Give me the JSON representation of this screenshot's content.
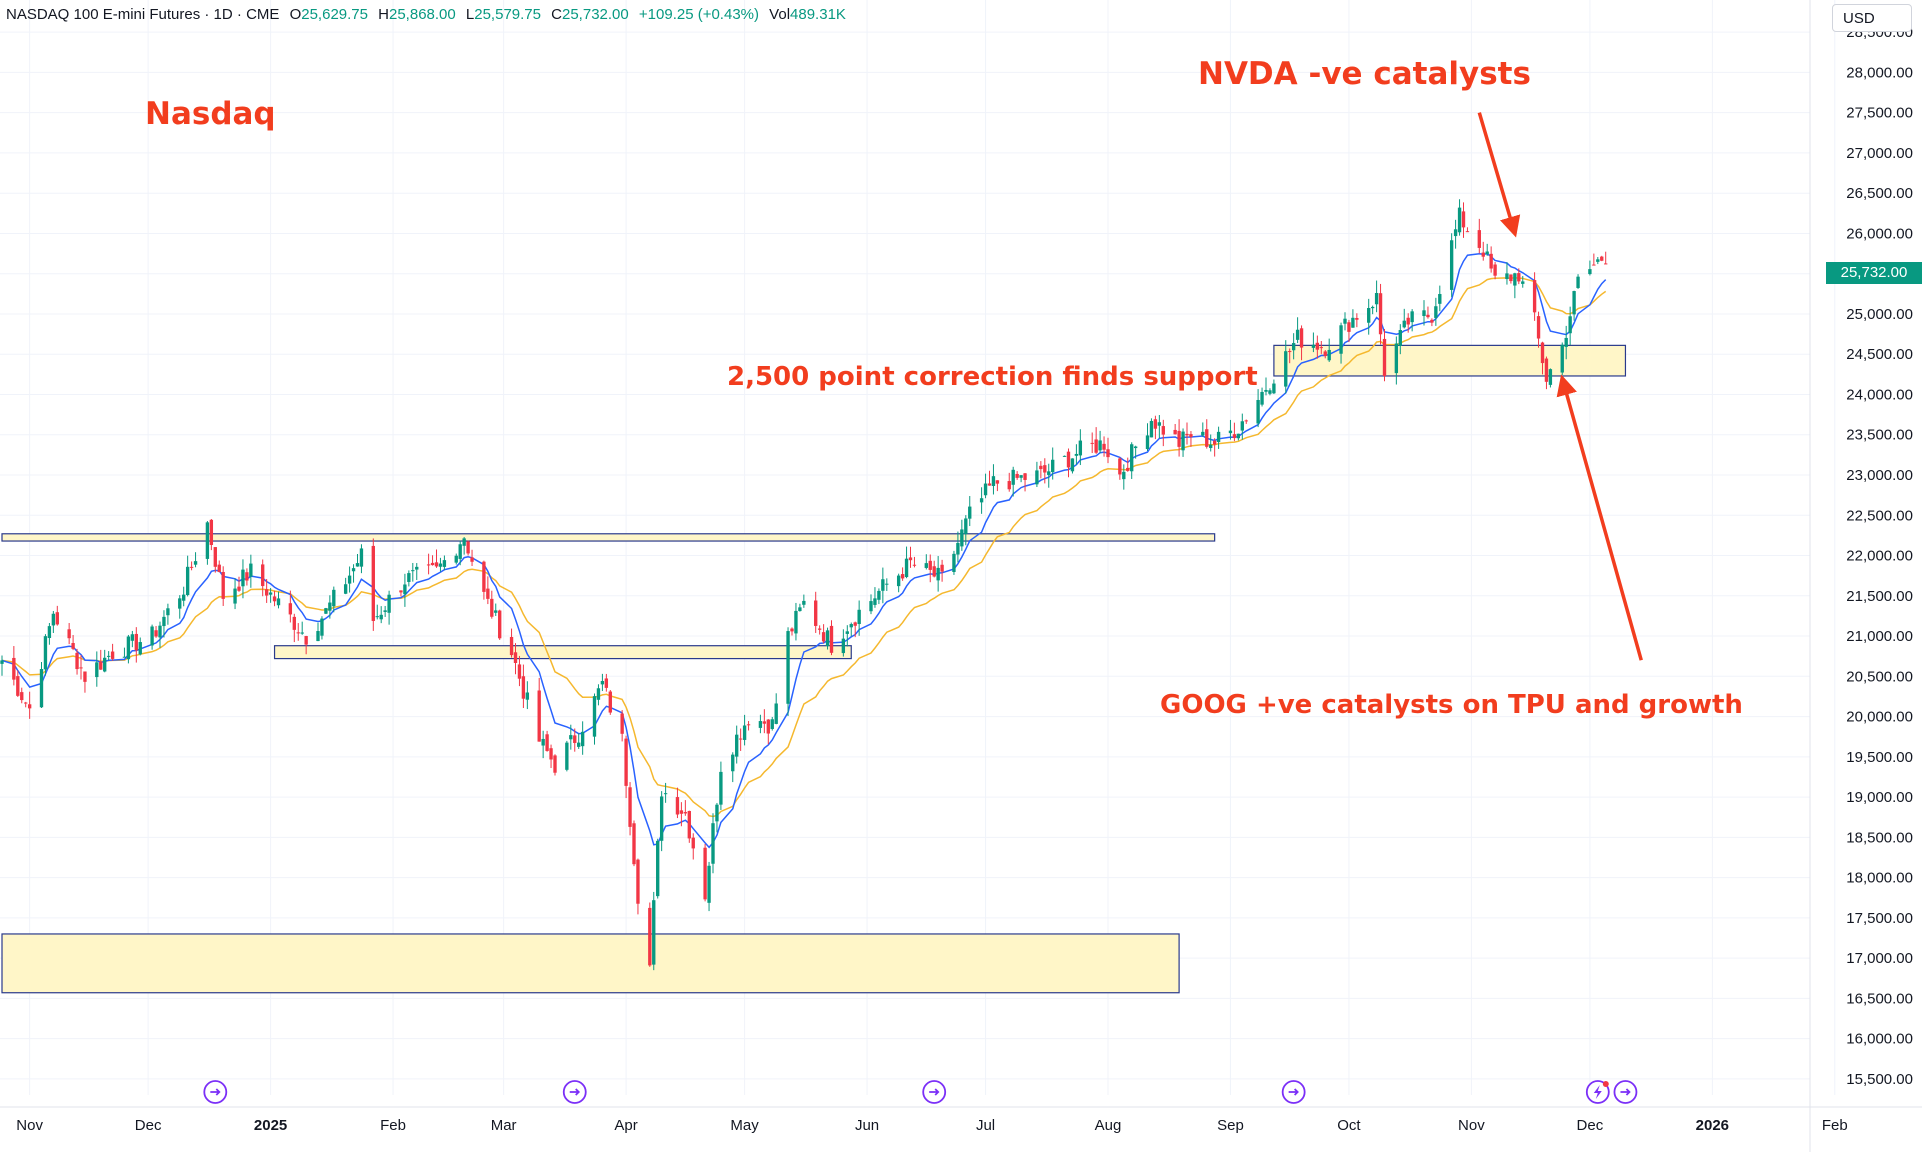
{
  "header": {
    "symbol": "NASDAQ 100 E-mini Futures · 1D · CME",
    "open_label": "O",
    "open": "25,629.75",
    "high_label": "H",
    "high": "25,868.00",
    "low_label": "L",
    "low": "25,579.75",
    "close_label": "C",
    "close": "25,732.00",
    "change": "+109.25 (+0.43%)",
    "vol_label": "Vol",
    "volume": "489.31K"
  },
  "currency": "USD",
  "last_price_tag": "25,732.00",
  "colors": {
    "up": "#089981",
    "down": "#f23645",
    "ma_fast": "#2962ff",
    "ma_slow": "#f5b82e",
    "zone_fill": "#fff6c8",
    "zone_border": "#2a3a8c",
    "annotation": "#f23d1e",
    "event_icon": "#7b2ff7"
  },
  "annotations": {
    "title": "Nasdaq",
    "nvda": "NVDA -ve catalysts",
    "correction": "2,500 point correction finds support",
    "goog": "GOOG +ve catalysts on TPU and growth"
  },
  "event_icons": [
    "event-icon",
    "event-icon",
    "event-icon",
    "event-icon",
    "event-icon-flash",
    "event-icon"
  ],
  "chart_data": {
    "type": "candlestick",
    "title": "",
    "ylim": [
      15300,
      28800
    ],
    "y_ticks": [
      "15,500.00",
      "16,000.00",
      "16,500.00",
      "17,000.00",
      "17,500.00",
      "18,000.00",
      "18,500.00",
      "19,000.00",
      "19,500.00",
      "20,000.00",
      "20,500.00",
      "21,000.00",
      "21,500.00",
      "22,000.00",
      "22,500.00",
      "23,000.00",
      "23,500.00",
      "24,000.00",
      "24,500.00",
      "25,000.00",
      "25,500.00",
      "26,000.00",
      "26,500.00",
      "27,000.00",
      "27,500.00",
      "28,000.00",
      "28,500.00"
    ],
    "x_ticks": [
      {
        "label": "Nov",
        "date": "2024-11-01",
        "bold": false
      },
      {
        "label": "Dec",
        "date": "2024-12-01",
        "bold": false
      },
      {
        "label": "2025",
        "date": "2025-01-01",
        "bold": true
      },
      {
        "label": "Feb",
        "date": "2025-02-01",
        "bold": false
      },
      {
        "label": "Mar",
        "date": "2025-03-01",
        "bold": false
      },
      {
        "label": "Apr",
        "date": "2025-04-01",
        "bold": false
      },
      {
        "label": "May",
        "date": "2025-05-01",
        "bold": false
      },
      {
        "label": "Jun",
        "date": "2025-06-01",
        "bold": false
      },
      {
        "label": "Jul",
        "date": "2025-07-01",
        "bold": false
      },
      {
        "label": "Aug",
        "date": "2025-08-01",
        "bold": false
      },
      {
        "label": "Sep",
        "date": "2025-09-01",
        "bold": false
      },
      {
        "label": "Oct",
        "date": "2025-10-01",
        "bold": false
      },
      {
        "label": "Nov",
        "date": "2025-11-01",
        "bold": false
      },
      {
        "label": "Dec",
        "date": "2025-12-01",
        "bold": false
      },
      {
        "label": "2026",
        "date": "2026-01-01",
        "bold": true
      },
      {
        "label": "Feb",
        "date": "2026-02-01",
        "bold": false
      }
    ],
    "price_path": [
      [
        "2024-10-25",
        20700
      ],
      [
        "2024-11-01",
        20100
      ],
      [
        "2024-11-07",
        21300
      ],
      [
        "2024-11-15",
        20500
      ],
      [
        "2024-11-22",
        20800
      ],
      [
        "2024-12-02",
        21000
      ],
      [
        "2024-12-10",
        21600
      ],
      [
        "2024-12-16",
        22400
      ],
      [
        "2024-12-20",
        21500
      ],
      [
        "2024-12-27",
        21800
      ],
      [
        "2025-01-03",
        21400
      ],
      [
        "2025-01-10",
        21000
      ],
      [
        "2025-01-15",
        21300
      ],
      [
        "2025-01-24",
        22000
      ],
      [
        "2025-01-27",
        21200
      ],
      [
        "2025-02-04",
        21700
      ],
      [
        "2025-02-12",
        21800
      ],
      [
        "2025-02-19",
        22250
      ],
      [
        "2025-02-24",
        21500
      ],
      [
        "2025-03-03",
        20800
      ],
      [
        "2025-03-10",
        19700
      ],
      [
        "2025-03-14",
        19400
      ],
      [
        "2025-03-20",
        19800
      ],
      [
        "2025-03-26",
        20400
      ],
      [
        "2025-03-31",
        19700
      ],
      [
        "2025-04-04",
        17800
      ],
      [
        "2025-04-07",
        16900
      ],
      [
        "2025-04-10",
        19100
      ],
      [
        "2025-04-16",
        18800
      ],
      [
        "2025-04-21",
        17800
      ],
      [
        "2025-04-25",
        19400
      ],
      [
        "2025-05-02",
        20000
      ],
      [
        "2025-05-08",
        19900
      ],
      [
        "2025-05-12",
        21000
      ],
      [
        "2025-05-16",
        21400
      ],
      [
        "2025-05-23",
        20900
      ],
      [
        "2025-05-28",
        21200
      ],
      [
        "2025-06-05",
        21600
      ],
      [
        "2025-06-12",
        21900
      ],
      [
        "2025-06-20",
        21700
      ],
      [
        "2025-06-27",
        22500
      ],
      [
        "2025-07-03",
        22900
      ],
      [
        "2025-07-15",
        23000
      ],
      [
        "2025-07-25",
        23300
      ],
      [
        "2025-07-31",
        23400
      ],
      [
        "2025-08-04",
        23000
      ],
      [
        "2025-08-12",
        23700
      ],
      [
        "2025-08-19",
        23400
      ],
      [
        "2025-08-22",
        23500
      ],
      [
        "2025-08-28",
        23400
      ],
      [
        "2025-09-03",
        23600
      ],
      [
        "2025-09-10",
        24100
      ],
      [
        "2025-09-18",
        24700
      ],
      [
        "2025-09-25",
        24600
      ],
      [
        "2025-10-01",
        24900
      ],
      [
        "2025-10-08",
        25200
      ],
      [
        "2025-10-10",
        24300
      ],
      [
        "2025-10-16",
        24900
      ],
      [
        "2025-10-22",
        25000
      ],
      [
        "2025-10-29",
        26200
      ],
      [
        "2025-11-04",
        25800
      ],
      [
        "2025-11-07",
        25400
      ],
      [
        "2025-11-13",
        25500
      ],
      [
        "2025-11-17",
        24900
      ],
      [
        "2025-11-20",
        24200
      ],
      [
        "2025-11-24",
        24600
      ],
      [
        "2025-11-28",
        25400
      ],
      [
        "2025-12-03",
        25650
      ],
      [
        "2025-12-05",
        25732
      ]
    ],
    "series": [
      {
        "name": "",
        "type": "ema_fast",
        "period": 9
      },
      {
        "name": "",
        "type": "ema_slow",
        "period": 21
      }
    ],
    "zones": [
      {
        "name": "resistance",
        "from": "2024-10-25",
        "to": "2025-08-28",
        "low": 22180,
        "high": 22270
      },
      {
        "name": "support-jan",
        "from": "2025-01-02",
        "to": "2025-05-28",
        "low": 20720,
        "high": 20880
      },
      {
        "name": "apr-low-zone",
        "from": "2024-10-25",
        "to": "2025-08-19",
        "low": 16570,
        "high": 17300
      },
      {
        "name": "correction-support",
        "from": "2025-09-12",
        "to": "2025-12-10",
        "low": 24230,
        "high": 24610
      }
    ],
    "arrows": [
      {
        "name": "nvda-arrow",
        "from": [
          "2025-11-03",
          27500
        ],
        "to": [
          "2025-11-12",
          26000
        ]
      },
      {
        "name": "goog-arrow",
        "from": [
          "2025-12-14",
          20700
        ],
        "to": [
          "2025-11-24",
          24200
        ]
      }
    ],
    "event_dates": [
      "2024-12-18",
      "2025-03-19",
      "2025-06-18",
      "2025-09-17",
      "2025-12-03",
      "2025-12-10"
    ]
  }
}
